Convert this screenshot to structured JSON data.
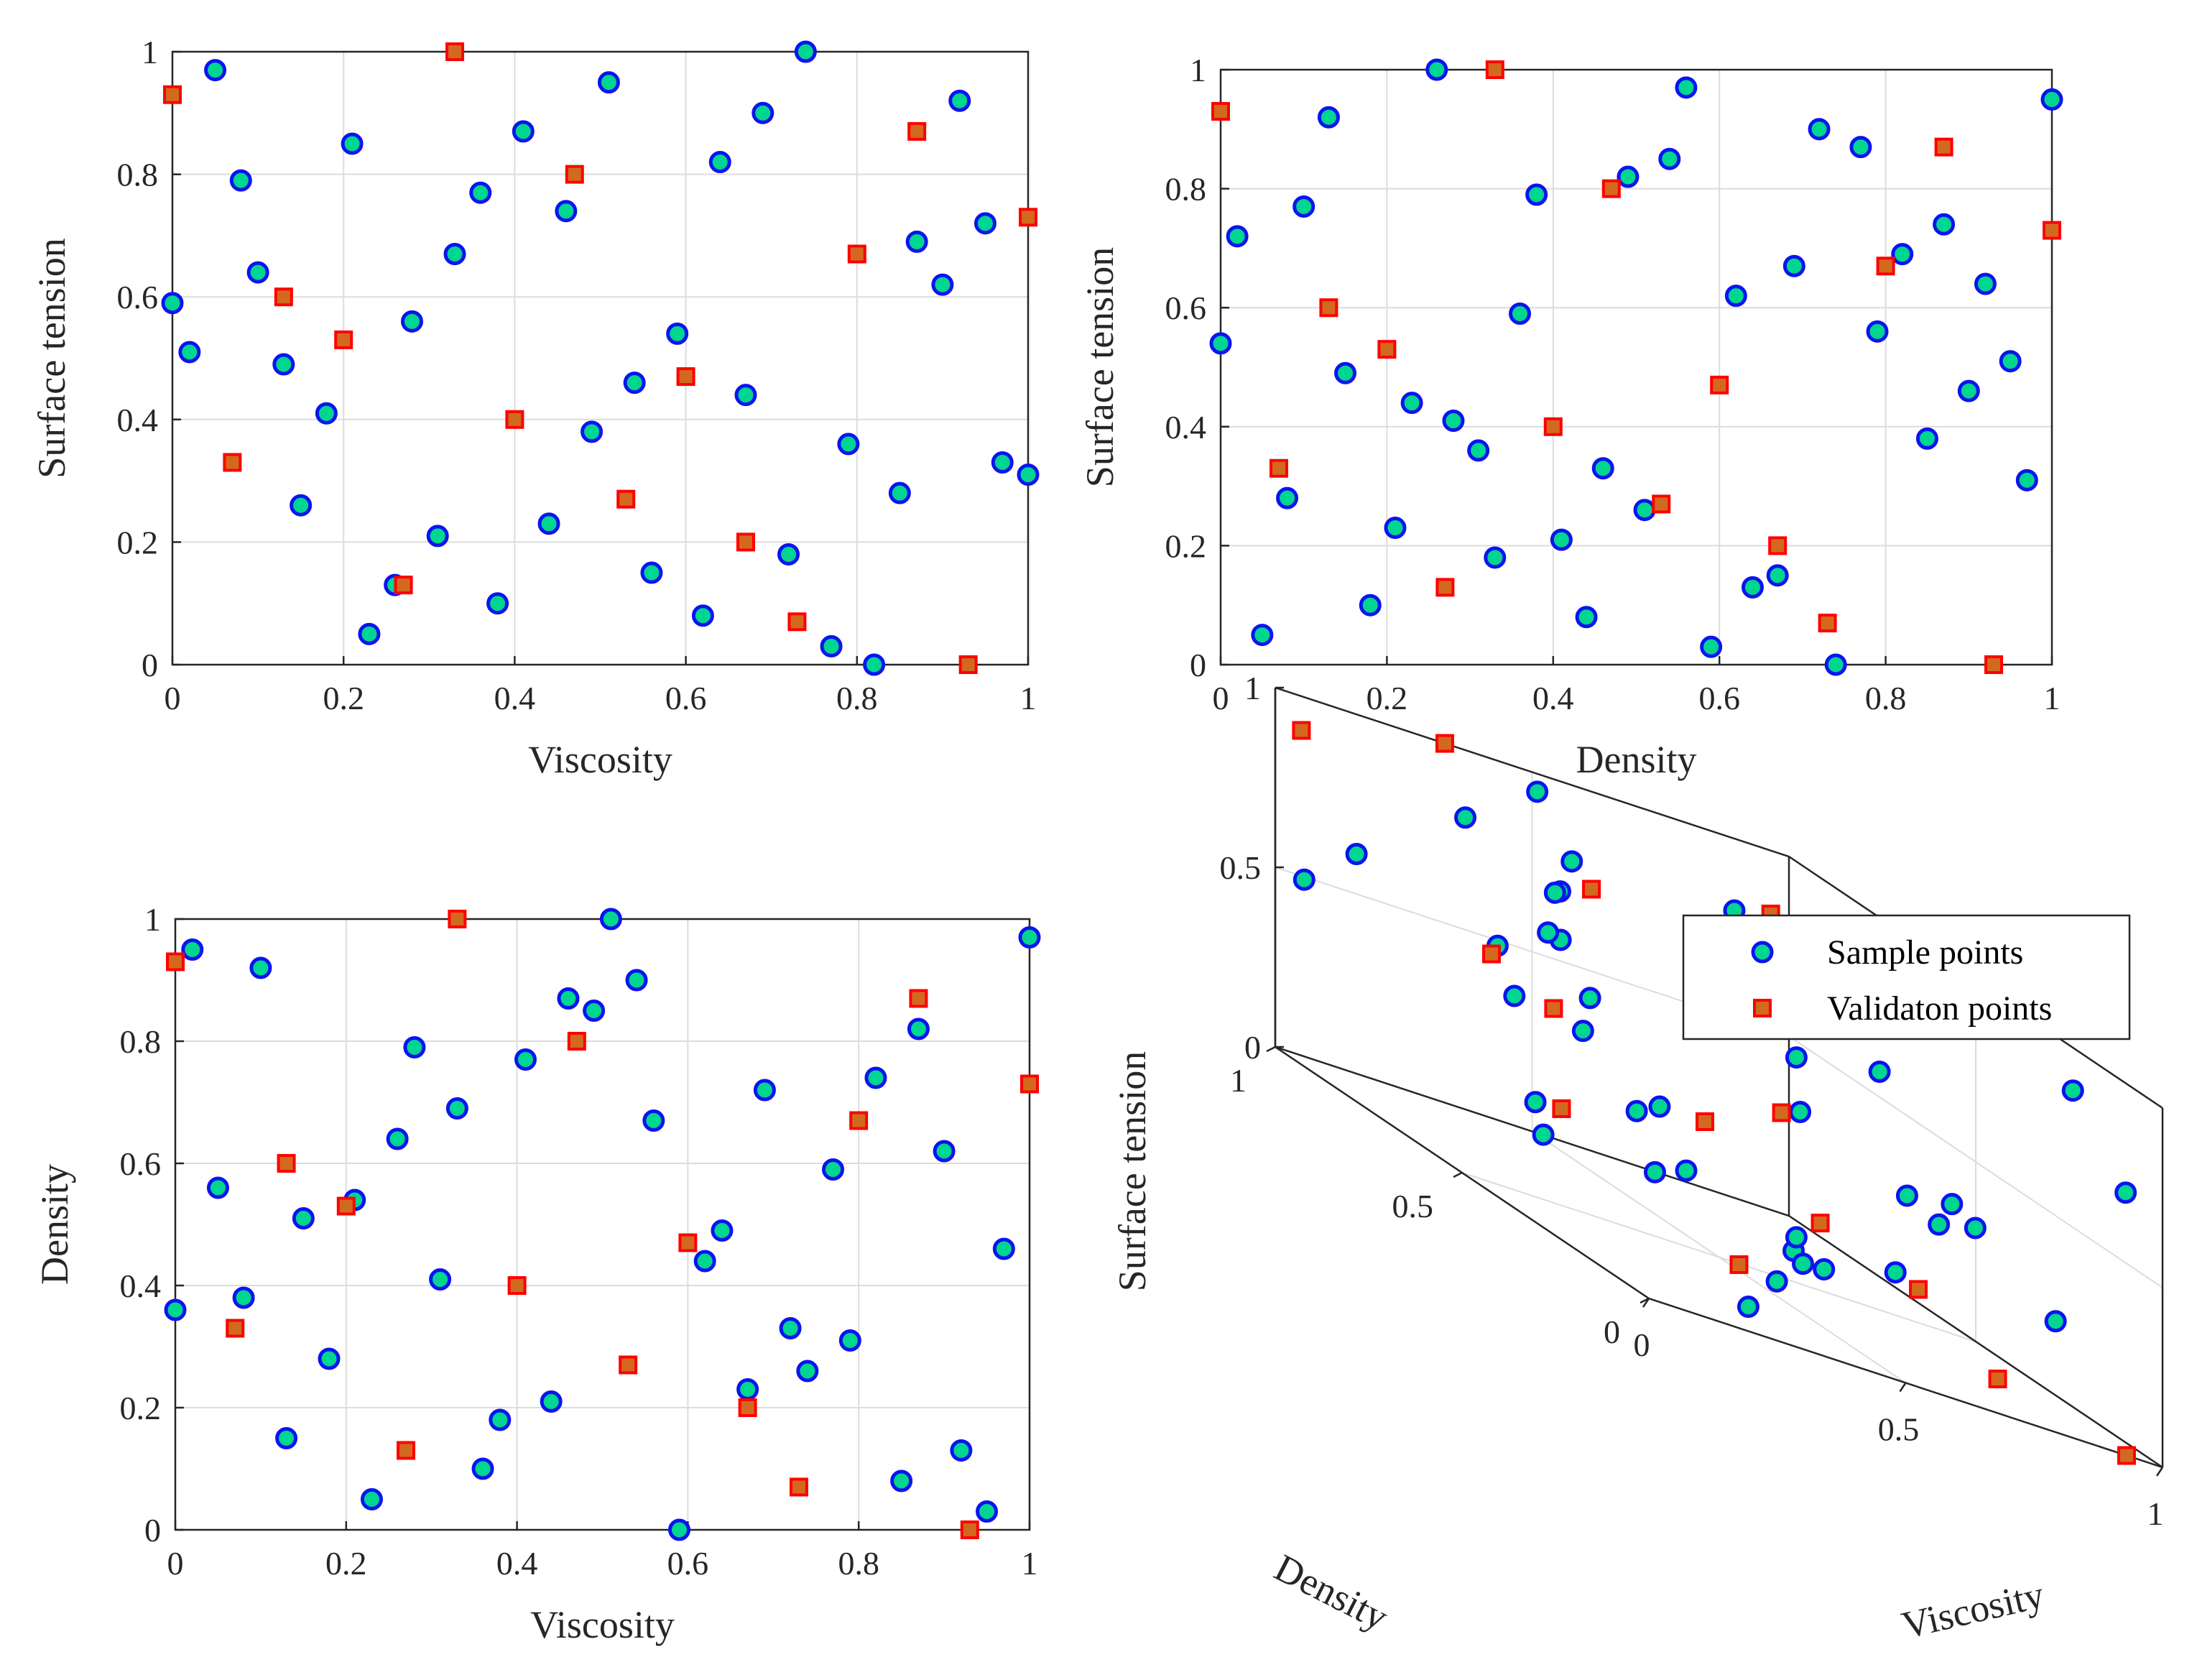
{
  "chart_data": [
    {
      "type": "scatter",
      "xlabel": "Viscosity",
      "ylabel": "Surface tension",
      "xlim": [
        0,
        1
      ],
      "ylim": [
        0,
        1
      ],
      "xticks": [
        "0",
        "0.2",
        "0.4",
        "0.6",
        "0.8",
        "1"
      ],
      "yticks": [
        "0",
        "0.2",
        "0.4",
        "0.6",
        "0.8",
        "1"
      ],
      "grid": true,
      "series": [
        {
          "name": "Sample points",
          "marker": "circle",
          "points": [
            [
              0.0,
              0.59
            ],
            [
              0.02,
              0.51
            ],
            [
              0.05,
              0.97
            ],
            [
              0.08,
              0.79
            ],
            [
              0.1,
              0.64
            ],
            [
              0.13,
              0.49
            ],
            [
              0.15,
              0.26
            ],
            [
              0.18,
              0.41
            ],
            [
              0.21,
              0.85
            ],
            [
              0.23,
              0.05
            ],
            [
              0.26,
              0.13
            ],
            [
              0.28,
              0.56
            ],
            [
              0.31,
              0.21
            ],
            [
              0.33,
              0.67
            ],
            [
              0.36,
              0.77
            ],
            [
              0.38,
              0.1
            ],
            [
              0.41,
              0.87
            ],
            [
              0.44,
              0.23
            ],
            [
              0.46,
              0.74
            ],
            [
              0.49,
              0.38
            ],
            [
              0.51,
              0.95
            ],
            [
              0.54,
              0.46
            ],
            [
              0.56,
              0.15
            ],
            [
              0.59,
              0.54
            ],
            [
              0.62,
              0.08
            ],
            [
              0.64,
              0.82
            ],
            [
              0.67,
              0.44
            ],
            [
              0.69,
              0.9
            ],
            [
              0.72,
              0.18
            ],
            [
              0.74,
              1.0
            ],
            [
              0.77,
              0.03
            ],
            [
              0.79,
              0.36
            ],
            [
              0.82,
              0.0
            ],
            [
              0.85,
              0.28
            ],
            [
              0.87,
              0.69
            ],
            [
              0.9,
              0.62
            ],
            [
              0.92,
              0.92
            ],
            [
              0.95,
              0.72
            ],
            [
              0.97,
              0.33
            ],
            [
              1.0,
              0.31
            ]
          ]
        },
        {
          "name": "Validaton points",
          "marker": "square",
          "points": [
            [
              0.0,
              0.93
            ],
            [
              0.07,
              0.33
            ],
            [
              0.13,
              0.6
            ],
            [
              0.2,
              0.53
            ],
            [
              0.27,
              0.13
            ],
            [
              0.33,
              1.0
            ],
            [
              0.4,
              0.4
            ],
            [
              0.47,
              0.8
            ],
            [
              0.53,
              0.27
            ],
            [
              0.6,
              0.47
            ],
            [
              0.67,
              0.2
            ],
            [
              0.73,
              0.07
            ],
            [
              0.8,
              0.67
            ],
            [
              0.87,
              0.87
            ],
            [
              0.93,
              0.0
            ],
            [
              1.0,
              0.73
            ]
          ]
        }
      ]
    },
    {
      "type": "scatter",
      "xlabel": "Density",
      "ylabel": "Surface tension",
      "xlim": [
        0,
        1
      ],
      "ylim": [
        0,
        1
      ],
      "xticks": [
        "0",
        "0.2",
        "0.4",
        "0.6",
        "0.8",
        "1"
      ],
      "yticks": [
        "0",
        "0.2",
        "0.4",
        "0.6",
        "0.8",
        "1"
      ],
      "grid": true,
      "series": [
        {
          "name": "Sample points",
          "marker": "circle",
          "points": [
            [
              0.0,
              0.54
            ],
            [
              0.02,
              0.72
            ],
            [
              0.05,
              0.05
            ],
            [
              0.08,
              0.28
            ],
            [
              0.1,
              0.77
            ],
            [
              0.13,
              0.92
            ],
            [
              0.15,
              0.49
            ],
            [
              0.18,
              0.1
            ],
            [
              0.21,
              0.23
            ],
            [
              0.23,
              0.44
            ],
            [
              0.26,
              1.0
            ],
            [
              0.28,
              0.41
            ],
            [
              0.31,
              0.36
            ],
            [
              0.33,
              0.18
            ],
            [
              0.36,
              0.59
            ],
            [
              0.38,
              0.79
            ],
            [
              0.41,
              0.21
            ],
            [
              0.44,
              0.08
            ],
            [
              0.46,
              0.33
            ],
            [
              0.49,
              0.82
            ],
            [
              0.51,
              0.26
            ],
            [
              0.54,
              0.85
            ],
            [
              0.56,
              0.97
            ],
            [
              0.59,
              0.03
            ],
            [
              0.62,
              0.62
            ],
            [
              0.64,
              0.13
            ],
            [
              0.67,
              0.15
            ],
            [
              0.69,
              0.67
            ],
            [
              0.72,
              0.9
            ],
            [
              0.74,
              0.0
            ],
            [
              0.77,
              0.87
            ],
            [
              0.79,
              0.56
            ],
            [
              0.82,
              0.69
            ],
            [
              0.85,
              0.38
            ],
            [
              0.87,
              0.74
            ],
            [
              0.9,
              0.46
            ],
            [
              0.92,
              0.64
            ],
            [
              0.95,
              0.51
            ],
            [
              0.97,
              0.31
            ],
            [
              1.0,
              0.95
            ]
          ]
        },
        {
          "name": "Validaton points",
          "marker": "square",
          "points": [
            [
              0.0,
              0.93
            ],
            [
              0.07,
              0.33
            ],
            [
              0.13,
              0.6
            ],
            [
              0.2,
              0.53
            ],
            [
              0.27,
              0.13
            ],
            [
              0.33,
              1.0
            ],
            [
              0.4,
              0.4
            ],
            [
              0.47,
              0.8
            ],
            [
              0.53,
              0.27
            ],
            [
              0.6,
              0.47
            ],
            [
              0.67,
              0.2
            ],
            [
              0.73,
              0.07
            ],
            [
              0.8,
              0.67
            ],
            [
              0.87,
              0.87
            ],
            [
              0.93,
              0.0
            ],
            [
              1.0,
              0.73
            ]
          ]
        }
      ]
    },
    {
      "type": "scatter",
      "xlabel": "Viscosity",
      "ylabel": "Density",
      "xlim": [
        0,
        1
      ],
      "ylim": [
        0,
        1
      ],
      "xticks": [
        "0",
        "0.2",
        "0.4",
        "0.6",
        "0.8",
        "1"
      ],
      "yticks": [
        "0",
        "0.2",
        "0.4",
        "0.6",
        "0.8",
        "1"
      ],
      "grid": true,
      "series": [
        {
          "name": "Sample points",
          "marker": "circle",
          "points": [
            [
              0.0,
              0.36
            ],
            [
              0.02,
              0.95
            ],
            [
              0.05,
              0.56
            ],
            [
              0.08,
              0.38
            ],
            [
              0.1,
              0.92
            ],
            [
              0.13,
              0.15
            ],
            [
              0.15,
              0.51
            ],
            [
              0.18,
              0.28
            ],
            [
              0.21,
              0.54
            ],
            [
              0.23,
              0.05
            ],
            [
              0.26,
              0.64
            ],
            [
              0.28,
              0.79
            ],
            [
              0.31,
              0.41
            ],
            [
              0.33,
              0.69
            ],
            [
              0.36,
              0.1
            ],
            [
              0.38,
              0.18
            ],
            [
              0.41,
              0.77
            ],
            [
              0.44,
              0.21
            ],
            [
              0.46,
              0.87
            ],
            [
              0.49,
              0.85
            ],
            [
              0.51,
              1.0
            ],
            [
              0.54,
              0.9
            ],
            [
              0.56,
              0.67
            ],
            [
              0.59,
              0.0
            ],
            [
              0.62,
              0.44
            ],
            [
              0.64,
              0.49
            ],
            [
              0.67,
              0.23
            ],
            [
              0.69,
              0.72
            ],
            [
              0.72,
              0.33
            ],
            [
              0.74,
              0.26
            ],
            [
              0.77,
              0.59
            ],
            [
              0.79,
              0.31
            ],
            [
              0.82,
              0.74
            ],
            [
              0.85,
              0.08
            ],
            [
              0.87,
              0.82
            ],
            [
              0.9,
              0.62
            ],
            [
              0.92,
              0.13
            ],
            [
              0.95,
              0.03
            ],
            [
              0.97,
              0.46
            ],
            [
              1.0,
              0.97
            ]
          ]
        },
        {
          "name": "Validaton points",
          "marker": "square",
          "points": [
            [
              0.0,
              0.93
            ],
            [
              0.07,
              0.33
            ],
            [
              0.13,
              0.6
            ],
            [
              0.2,
              0.53
            ],
            [
              0.27,
              0.13
            ],
            [
              0.33,
              1.0
            ],
            [
              0.4,
              0.4
            ],
            [
              0.47,
              0.8
            ],
            [
              0.53,
              0.27
            ],
            [
              0.6,
              0.47
            ],
            [
              0.67,
              0.2
            ],
            [
              0.73,
              0.07
            ],
            [
              0.8,
              0.67
            ],
            [
              0.87,
              0.87
            ],
            [
              0.93,
              0.0
            ],
            [
              1.0,
              0.73
            ]
          ]
        }
      ]
    },
    {
      "type": "scatter3d",
      "xlabel": "Viscosity",
      "ylabel": "Density",
      "zlabel": "Surface tension",
      "xlim": [
        0,
        1
      ],
      "ylim": [
        0,
        1
      ],
      "zlim": [
        0,
        1
      ],
      "xticks": [
        "0",
        "0.5",
        "1"
      ],
      "yticks": [
        "0",
        "0.5",
        "1"
      ],
      "zticks": [
        "0",
        "0.5",
        "1"
      ],
      "grid": true,
      "legend": {
        "location": "top-right",
        "entries": [
          "Sample points",
          "Validaton points"
        ]
      },
      "series_ref": "points combine x from Viscosity, y from Density, z from Surface tension of the three 2D panels"
    }
  ],
  "colors": {
    "circle_face": "#00D68F",
    "circle_edge": "#0A14F0",
    "square_face": "#D2691E",
    "square_edge": "#FF0000",
    "axis": "#262626",
    "grid": "#dcdcdc"
  }
}
